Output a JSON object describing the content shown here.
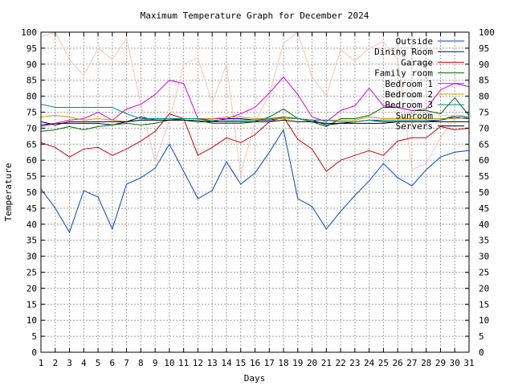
{
  "chart_data": {
    "type": "line",
    "title": "Maximum Temperature Graph for December 2024",
    "xlabel": "Days",
    "ylabel": "Temperature",
    "xlim": [
      1,
      31
    ],
    "ylim": [
      0,
      100
    ],
    "y_right_axis": true,
    "grid": true,
    "legend_position": "top-right",
    "x_ticks": [
      1,
      2,
      3,
      4,
      5,
      6,
      7,
      8,
      9,
      10,
      11,
      12,
      13,
      14,
      15,
      16,
      17,
      18,
      19,
      20,
      21,
      22,
      23,
      24,
      25,
      26,
      27,
      28,
      29,
      30,
      31
    ],
    "y_ticks": [
      0,
      5,
      10,
      15,
      20,
      25,
      30,
      35,
      40,
      45,
      50,
      55,
      60,
      65,
      70,
      75,
      80,
      85,
      90,
      95,
      100
    ],
    "x": [
      1,
      2,
      3,
      4,
      5,
      6,
      7,
      8,
      9,
      10,
      11,
      12,
      13,
      14,
      15,
      16,
      17,
      18,
      19,
      20,
      21,
      22,
      23,
      24,
      25,
      26,
      27,
      28,
      29,
      30,
      31
    ],
    "series": [
      {
        "name": "Outside",
        "color": "#0044cc",
        "values": [
          51,
          45,
          37.5,
          50.5,
          48.5,
          38.5,
          52.5,
          54.5,
          57.5,
          65,
          56.5,
          48,
          50.5,
          59.5,
          52.5,
          56,
          62.5,
          69.5,
          48,
          45.5,
          38.5,
          44,
          49,
          53.5,
          59,
          54.5,
          52,
          57,
          61,
          62.5,
          63
        ]
      },
      {
        "name": "Dining Room",
        "color": "#000066",
        "values": [
          71,
          71.5,
          71.5,
          71.5,
          71.5,
          71,
          72,
          73.5,
          72.5,
          72.5,
          73,
          73,
          72,
          73,
          73,
          72.5,
          72.5,
          73.5,
          73,
          72.5,
          71,
          71.5,
          72,
          72.5,
          72,
          72,
          72,
          72,
          72.5,
          73.5,
          73
        ]
      },
      {
        "name": "Garage",
        "color": "#cc0000",
        "values": [
          65.5,
          64,
          61,
          63.5,
          64,
          61.5,
          63.5,
          66,
          69,
          74.5,
          73,
          61.5,
          64,
          67,
          65.5,
          68,
          72,
          73.5,
          66.5,
          63.5,
          56.5,
          60,
          61.5,
          63,
          61.5,
          66,
          67,
          67,
          70.5,
          69.5,
          70
        ]
      },
      {
        "name": "Family room",
        "color": "#006600",
        "values": [
          69,
          69.5,
          70.5,
          69.5,
          70.5,
          71,
          71.5,
          71,
          71.5,
          72.5,
          72.5,
          72.5,
          71.5,
          71.5,
          71.5,
          72,
          73.5,
          76,
          73,
          72,
          70.5,
          73,
          73,
          74,
          76.5,
          76.5,
          75.5,
          75.5,
          74.5,
          79.5,
          74
        ]
      },
      {
        "name": "Bedroom 1",
        "color": "#dd00dd",
        "values": [
          70.5,
          71.5,
          72.5,
          73,
          75,
          72.5,
          76,
          77.5,
          80.5,
          85,
          84,
          73,
          73,
          73,
          74.5,
          76.5,
          81,
          86,
          80.5,
          73.5,
          72,
          75.5,
          77,
          82.5,
          77,
          76.5,
          75.5,
          76,
          82,
          84,
          83
        ]
      },
      {
        "name": "Bedroom 2",
        "color": "#cc9900",
        "values": [
          73.5,
          74,
          73.5,
          72.5,
          73,
          72.5,
          72,
          72.5,
          73,
          73,
          73,
          73,
          73,
          73.5,
          73.5,
          73,
          73,
          73,
          73,
          72.5,
          72.5,
          72.5,
          72.5,
          73.5,
          73,
          73,
          73,
          73,
          73,
          73,
          73.5
        ]
      },
      {
        "name": "Bedroom 3",
        "color": "#008888",
        "values": [
          77.5,
          76.5,
          76.5,
          76.5,
          76.5,
          76.5,
          74.5,
          73,
          73,
          73,
          73,
          73,
          72.5,
          72.5,
          72.5,
          72.5,
          73,
          73.5,
          73,
          72.5,
          72.5,
          72,
          72,
          72.5,
          72.5,
          72.5,
          72.5,
          72.5,
          72.5,
          74,
          73.5
        ]
      },
      {
        "name": "Sunroom",
        "color": "#ffc0c0",
        "values": [
          98.5,
          100,
          91.5,
          86.5,
          95,
          91.5,
          98,
          77.5,
          59.5,
          72.5,
          90,
          92,
          78,
          90,
          55.5,
          72,
          80.5,
          96.5,
          100,
          86,
          80,
          94.5,
          91,
          95,
          97,
          91.5,
          57,
          59,
          67,
          73,
          73
        ]
      },
      {
        "name": "Servers",
        "color": "#000000",
        "values": [
          72,
          71,
          72,
          72,
          72,
          72,
          72,
          72.5,
          72.5,
          72.5,
          72.5,
          72,
          72,
          72,
          72,
          72,
          72,
          72.5,
          72,
          72,
          71.5,
          71.5,
          71.5,
          71.5,
          71.5,
          72,
          72,
          72,
          72,
          72,
          72
        ]
      }
    ]
  }
}
